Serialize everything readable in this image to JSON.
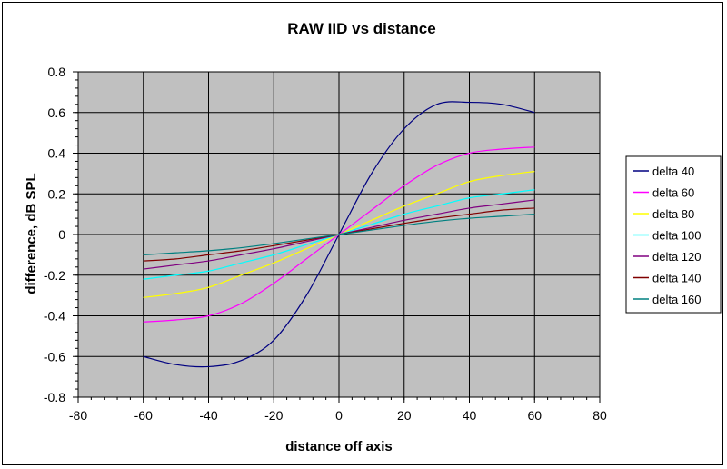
{
  "chart_data": {
    "type": "line",
    "title": "RAW IID vs distance",
    "xlabel": "distance off axis",
    "ylabel": "difference, dB SPL",
    "xlim": [
      -80,
      80
    ],
    "ylim": [
      -0.8,
      0.8
    ],
    "xticks": [
      -80,
      -60,
      -40,
      -20,
      0,
      20,
      40,
      60,
      80
    ],
    "yticks": [
      -0.8,
      -0.6,
      -0.4,
      -0.2,
      0,
      0.2,
      0.4,
      0.6,
      0.8
    ],
    "ytick_labels": [
      "-0.8",
      "-0.6",
      "-0.4",
      "-0.2",
      "0",
      "0.2",
      "0.4",
      "0.6",
      "0.8"
    ],
    "grid": true,
    "plot_background": "#c0c0c0",
    "legend_position": "right",
    "x": [
      -60,
      -50,
      -40,
      -30,
      -20,
      -10,
      0,
      10,
      20,
      30,
      40,
      50,
      60
    ],
    "series": [
      {
        "name": "delta 40",
        "color": "#000080",
        "values": [
          -0.6,
          -0.64,
          -0.65,
          -0.62,
          -0.52,
          -0.3,
          0.0,
          0.3,
          0.52,
          0.64,
          0.65,
          0.64,
          0.6
        ]
      },
      {
        "name": "delta 60",
        "color": "#ff00ff",
        "values": [
          -0.43,
          -0.42,
          -0.4,
          -0.34,
          -0.24,
          -0.12,
          0.0,
          0.12,
          0.24,
          0.34,
          0.4,
          0.42,
          0.43
        ]
      },
      {
        "name": "delta 80",
        "color": "#ffff00",
        "values": [
          -0.31,
          -0.29,
          -0.26,
          -0.2,
          -0.14,
          -0.07,
          0.0,
          0.07,
          0.14,
          0.2,
          0.26,
          0.29,
          0.31
        ]
      },
      {
        "name": "delta 100",
        "color": "#00ffff",
        "values": [
          -0.22,
          -0.2,
          -0.18,
          -0.14,
          -0.1,
          -0.05,
          0.0,
          0.05,
          0.1,
          0.14,
          0.18,
          0.2,
          0.22
        ]
      },
      {
        "name": "delta 120",
        "color": "#800080",
        "values": [
          -0.17,
          -0.15,
          -0.13,
          -0.1,
          -0.07,
          -0.035,
          0.0,
          0.035,
          0.07,
          0.1,
          0.13,
          0.15,
          0.17
        ]
      },
      {
        "name": "delta 140",
        "color": "#800000",
        "values": [
          -0.13,
          -0.12,
          -0.1,
          -0.08,
          -0.055,
          -0.028,
          0.0,
          0.028,
          0.055,
          0.08,
          0.1,
          0.12,
          0.13
        ]
      },
      {
        "name": "delta 160",
        "color": "#008080",
        "values": [
          -0.1,
          -0.09,
          -0.08,
          -0.065,
          -0.045,
          -0.022,
          0.0,
          0.022,
          0.045,
          0.065,
          0.08,
          0.09,
          0.1
        ]
      }
    ]
  }
}
